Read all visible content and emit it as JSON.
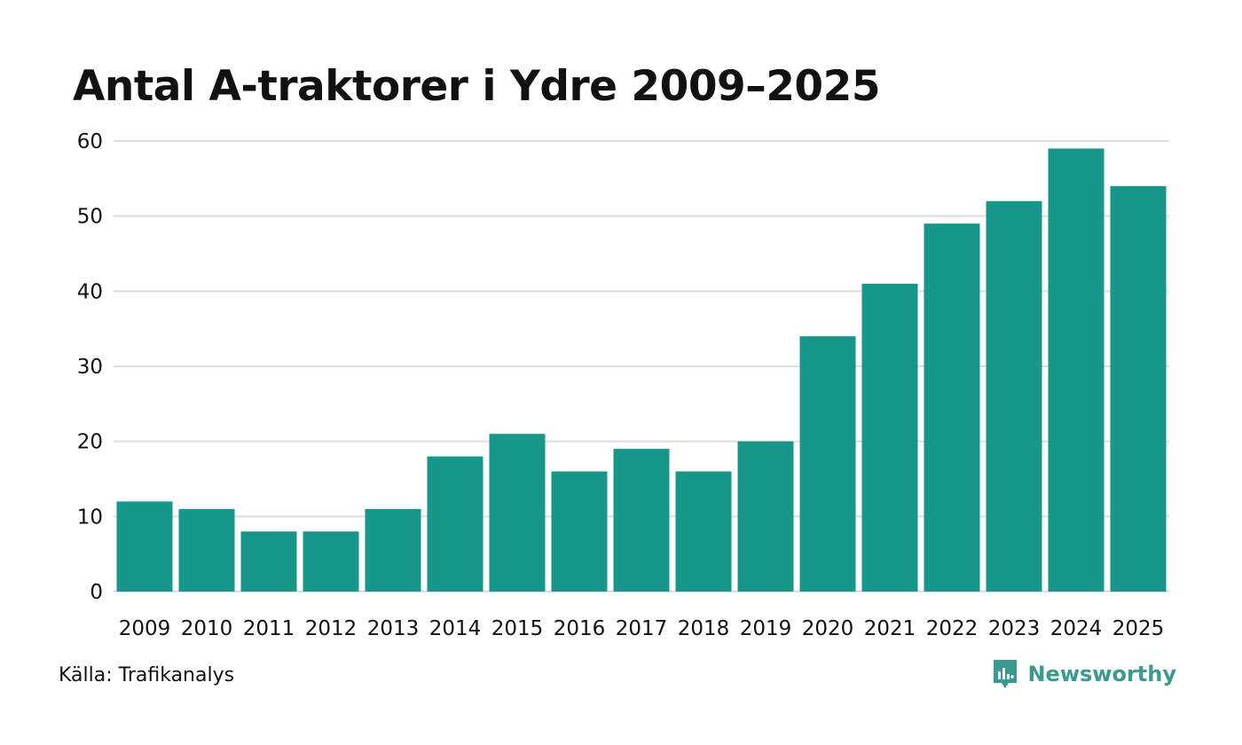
{
  "title": "Antal A-traktorer i Ydre 2009–2025",
  "source": "Källa: Trafikanalys",
  "brand": {
    "name": "Newsworthy",
    "icon": "newsworthy-logo-icon"
  },
  "colors": {
    "bar": "#16978a",
    "grid": "#dedee2",
    "brand": "#3a9a8f",
    "text": "#111111"
  },
  "chart_data": {
    "type": "bar",
    "title": "Antal A-traktorer i Ydre 2009–2025",
    "xlabel": "",
    "ylabel": "",
    "categories": [
      "2009",
      "2010",
      "2011",
      "2012",
      "2013",
      "2014",
      "2015",
      "2016",
      "2017",
      "2018",
      "2019",
      "2020",
      "2021",
      "2022",
      "2023",
      "2024",
      "2025"
    ],
    "values": [
      12,
      11,
      8,
      8,
      11,
      18,
      21,
      16,
      19,
      16,
      20,
      34,
      41,
      49,
      52,
      59,
      54
    ],
    "ylim": [
      0,
      60
    ],
    "yticks": [
      0,
      10,
      20,
      30,
      40,
      50,
      60
    ],
    "grid": true,
    "legend": "none"
  }
}
